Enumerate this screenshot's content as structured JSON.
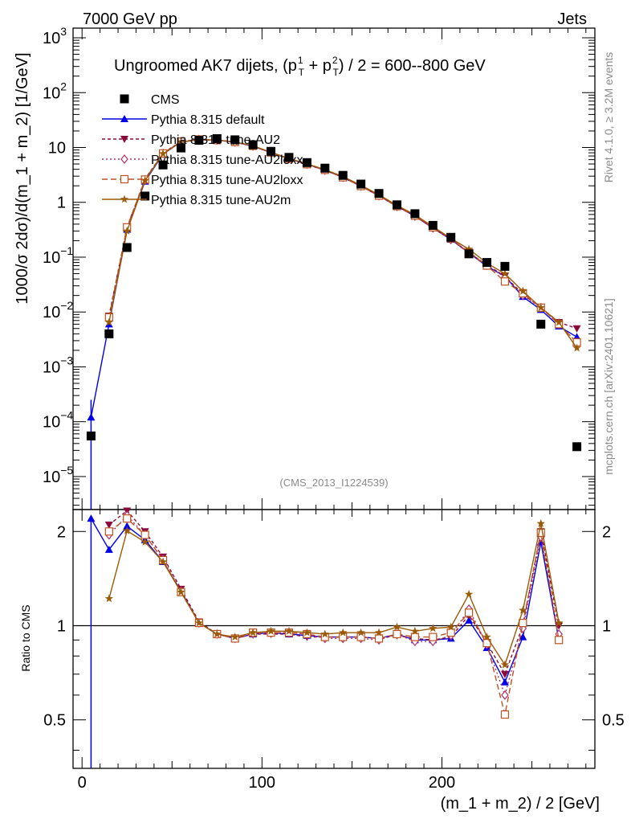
{
  "chart_data": {
    "type": "line",
    "header_left": "7000 GeV pp",
    "header_right": "Jets",
    "title_prefix": "Ungroomed AK7 dijets, (p",
    "title_mid": " + p",
    "title_suffix": ") / 2 = 600--800 GeV",
    "title_sup1": "1",
    "title_sup2": "2",
    "title_sub": "T",
    "ylabel": "1000/σ   2dσ)/d(m_1 + m_2) [1/GeV]",
    "xlabel": "(m_1 + m_2) / 2 [GeV]",
    "ratio_ylabel": "Ratio to CMS",
    "analysis_id": "(CMS_2013_I1224539)",
    "side_label_1": "Rivet 4.1.0, ≥ 3.2M events",
    "side_label_2": "mcplots.cern.ch [arXiv:2401.10621]",
    "xlim": [
      -5,
      285
    ],
    "ylim": [
      2.5e-06,
      1500
    ],
    "ratio_ylim": [
      0.35,
      2.35
    ],
    "x_ticks": [
      0,
      100,
      200
    ],
    "x_tick_labels": [
      "0",
      "100",
      "200"
    ],
    "y_ticks": [
      {
        "base": "10",
        "exp": "3",
        "v": 1000
      },
      {
        "base": "10",
        "exp": "2",
        "v": 100
      },
      {
        "base": "10",
        "exp": "",
        "v": 10
      },
      {
        "base": "1",
        "exp": "",
        "v": 1
      },
      {
        "base": "10",
        "exp": "−1",
        "v": 0.1
      },
      {
        "base": "10",
        "exp": "−2",
        "v": 0.01
      },
      {
        "base": "10",
        "exp": "−3",
        "v": 0.001
      },
      {
        "base": "10",
        "exp": "−4",
        "v": 0.0001
      },
      {
        "base": "10",
        "exp": "−5",
        "v": 1e-05
      }
    ],
    "ratio_ticks": [
      {
        "label": "2",
        "v": 2
      },
      {
        "label": "1",
        "v": 1
      },
      {
        "label": "0.5",
        "v": 0.5
      }
    ],
    "x": [
      5,
      15,
      25,
      35,
      45,
      55,
      65,
      75,
      85,
      95,
      105,
      115,
      125,
      135,
      145,
      155,
      165,
      175,
      185,
      195,
      205,
      215,
      225,
      235,
      245,
      255,
      265,
      275
    ],
    "data": {
      "name": "CMS",
      "values": [
        5.5e-05,
        0.004,
        0.15,
        1.3,
        4.8,
        9.8,
        13.5,
        14.5,
        13.8,
        11.2,
        8.5,
        6.6,
        5.3,
        4.2,
        3.1,
        2.15,
        1.45,
        0.9,
        0.62,
        0.38,
        0.23,
        0.115,
        0.08,
        0.068,
        null,
        0.006,
        null,
        3.5e-05
      ]
    },
    "series": [
      {
        "name": "Pythia 8.315 default",
        "color": "#0000ee",
        "marker": "triangle-up",
        "dash": "",
        "values": [
          0.00012,
          0.006,
          0.32,
          2.4,
          7.6,
          12.6,
          13.8,
          13.6,
          12.6,
          10.5,
          8.1,
          6.2,
          4.95,
          3.85,
          2.85,
          1.97,
          1.32,
          0.85,
          0.56,
          0.34,
          0.21,
          0.12,
          0.068,
          0.045,
          0.019,
          0.011,
          0.0055,
          0.0035
        ],
        "ratio": [
          2.2,
          1.75,
          2.08,
          1.88,
          1.6,
          1.29,
          1.02,
          0.94,
          0.91,
          0.94,
          0.95,
          0.94,
          0.93,
          0.92,
          0.92,
          0.92,
          0.91,
          0.94,
          0.9,
          0.9,
          0.91,
          1.04,
          0.85,
          0.66,
          0.92,
          1.85,
          0.9,
          null
        ]
      },
      {
        "name": "Pythia 8.315 tune-AU2",
        "color": "#8b0a3a",
        "marker": "triangle-down",
        "dash": "4,3",
        "values": [
          null,
          0.0085,
          0.35,
          2.65,
          7.9,
          12.9,
          14.0,
          13.6,
          12.5,
          10.6,
          8.05,
          6.2,
          4.9,
          3.85,
          2.85,
          1.97,
          1.31,
          0.84,
          0.56,
          0.34,
          0.21,
          0.12,
          0.072,
          0.045,
          0.021,
          0.012,
          0.0065,
          0.005
        ],
        "ratio": [
          null,
          2.1,
          2.33,
          2.0,
          1.66,
          1.31,
          1.03,
          0.94,
          0.91,
          0.94,
          0.94,
          0.94,
          0.92,
          0.92,
          0.92,
          0.92,
          0.91,
          0.93,
          0.91,
          0.9,
          0.92,
          1.08,
          0.88,
          0.7,
          1.0,
          2.0,
          1.0,
          null
        ]
      },
      {
        "name": "Pythia 8.315 tune-AU2loxx",
        "color": "#b0306f",
        "marker": "diamond-open",
        "dash": "2,3",
        "values": [
          null,
          0.0075,
          0.34,
          2.55,
          7.8,
          12.8,
          14.0,
          13.6,
          12.6,
          10.6,
          8.1,
          6.2,
          4.95,
          3.85,
          2.85,
          1.98,
          1.31,
          0.84,
          0.56,
          0.34,
          0.21,
          0.125,
          0.071,
          0.043,
          0.02,
          0.012,
          0.006,
          0.0028
        ],
        "ratio": [
          null,
          1.95,
          2.25,
          1.95,
          1.63,
          1.29,
          1.02,
          0.94,
          0.91,
          0.94,
          0.95,
          0.95,
          0.94,
          0.91,
          0.91,
          0.91,
          0.9,
          0.94,
          0.89,
          0.89,
          0.93,
          1.13,
          0.87,
          0.6,
          0.98,
          1.92,
          0.94,
          null
        ]
      },
      {
        "name": "Pythia 8.315 tune-AU2loxx",
        "color": "#c05020",
        "marker": "square-open",
        "dash": "7,4",
        "values": [
          null,
          0.008,
          0.35,
          2.6,
          7.8,
          12.8,
          14.0,
          13.6,
          12.6,
          10.7,
          8.1,
          6.25,
          4.95,
          3.9,
          2.85,
          1.98,
          1.32,
          0.85,
          0.57,
          0.35,
          0.22,
          0.12,
          0.07,
          0.036,
          0.022,
          0.012,
          0.006,
          0.0028
        ],
        "ratio": [
          null,
          2.0,
          2.2,
          1.95,
          1.62,
          1.28,
          1.02,
          0.94,
          0.91,
          0.95,
          0.95,
          0.95,
          0.94,
          0.92,
          0.92,
          0.92,
          0.91,
          0.94,
          0.92,
          0.92,
          0.95,
          1.1,
          0.88,
          0.52,
          1.02,
          1.98,
          0.9,
          null
        ]
      },
      {
        "name": "Pythia 8.315 tune-AU2m",
        "color": "#9b5a05",
        "marker": "star",
        "dash": "",
        "values": [
          null,
          0.0065,
          0.3,
          2.5,
          7.7,
          12.6,
          13.8,
          13.6,
          12.6,
          10.7,
          8.2,
          6.3,
          5.05,
          3.95,
          2.95,
          2.05,
          1.37,
          0.88,
          0.59,
          0.36,
          0.22,
          0.14,
          0.078,
          0.05,
          0.024,
          0.012,
          0.0065,
          0.0022
        ],
        "ratio": [
          null,
          1.22,
          2.01,
          1.85,
          1.6,
          1.28,
          1.02,
          0.94,
          0.92,
          0.95,
          0.96,
          0.96,
          0.95,
          0.94,
          0.95,
          0.95,
          0.95,
          0.99,
          0.96,
          0.98,
          0.99,
          1.26,
          0.92,
          0.75,
          1.12,
          2.12,
          1.02,
          null
        ]
      }
    ]
  }
}
